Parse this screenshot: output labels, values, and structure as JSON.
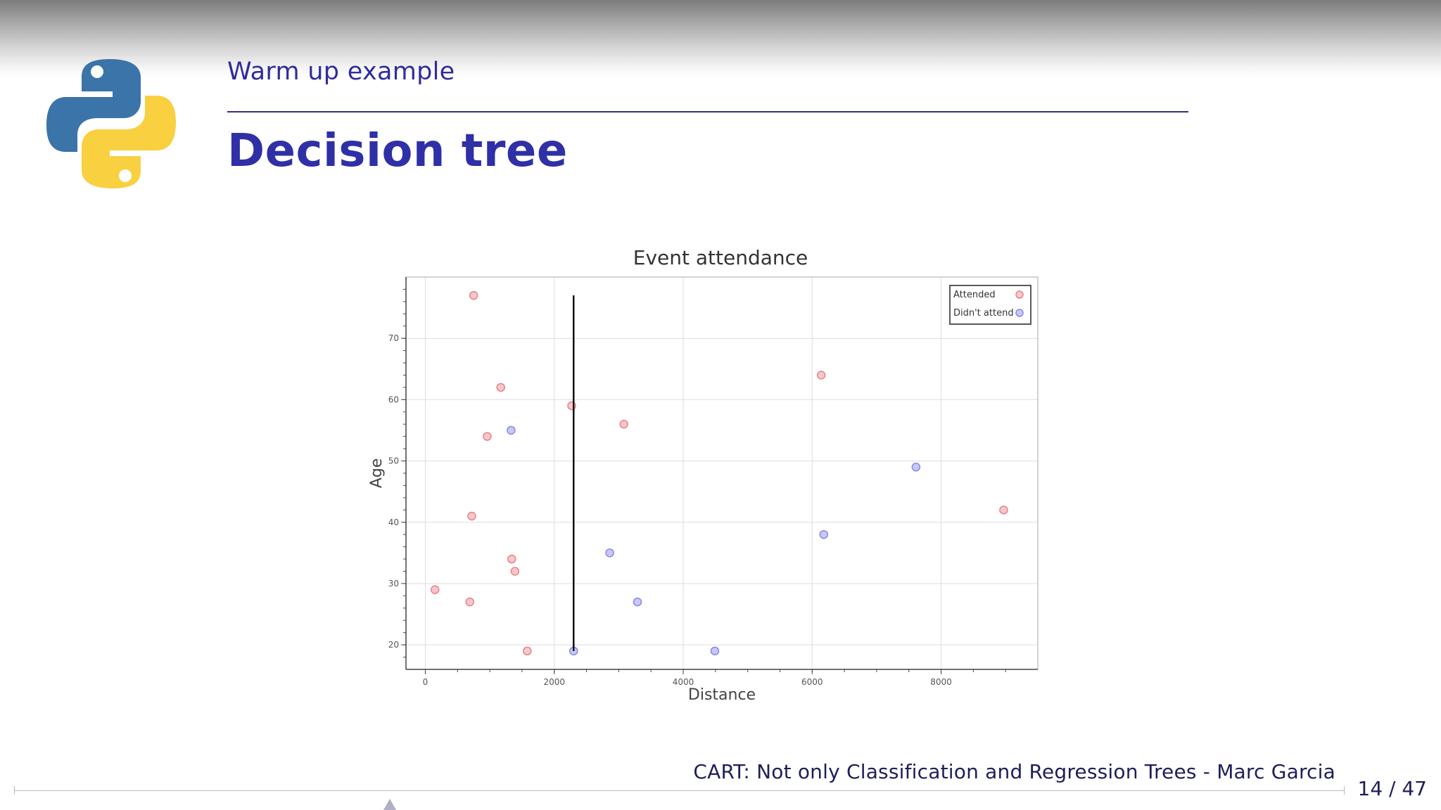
{
  "slide": {
    "section": "Warm up example",
    "title": "Decision tree",
    "footer": "CART: Not only Classification and Regression Trees - Marc Garcia",
    "page": "14 / 47"
  },
  "colors": {
    "heading": "#2f2fa6",
    "attended": "#e8828a",
    "didnt_attend": "#8888e8",
    "split_line": "#111111"
  },
  "icons": {
    "logo": "python-logo-icon"
  },
  "chart_data": {
    "type": "scatter",
    "title": "Event attendance",
    "xlabel": "Distance",
    "ylabel": "Age",
    "xlim": [
      -300,
      9500
    ],
    "ylim": [
      16,
      80
    ],
    "x_ticks": [
      0,
      2000,
      4000,
      6000,
      8000
    ],
    "y_ticks": [
      20,
      30,
      40,
      50,
      60,
      70
    ],
    "grid": true,
    "legend_position": "top-right",
    "series": [
      {
        "name": "Attended",
        "points": [
          [
            750,
            77
          ],
          [
            1170,
            62
          ],
          [
            2270,
            59
          ],
          [
            3080,
            56
          ],
          [
            960,
            54
          ],
          [
            720,
            41
          ],
          [
            1340,
            34
          ],
          [
            1390,
            32
          ],
          [
            150,
            29
          ],
          [
            690,
            27
          ],
          [
            1580,
            19
          ],
          [
            6140,
            64
          ],
          [
            8970,
            42
          ]
        ]
      },
      {
        "name": "Didn't attend",
        "points": [
          [
            1330,
            55
          ],
          [
            2860,
            35
          ],
          [
            3290,
            27
          ],
          [
            2300,
            19
          ],
          [
            4490,
            19
          ],
          [
            6180,
            38
          ],
          [
            7610,
            49
          ]
        ]
      }
    ],
    "split": {
      "x": 2300,
      "y_range": [
        19,
        77
      ]
    }
  }
}
